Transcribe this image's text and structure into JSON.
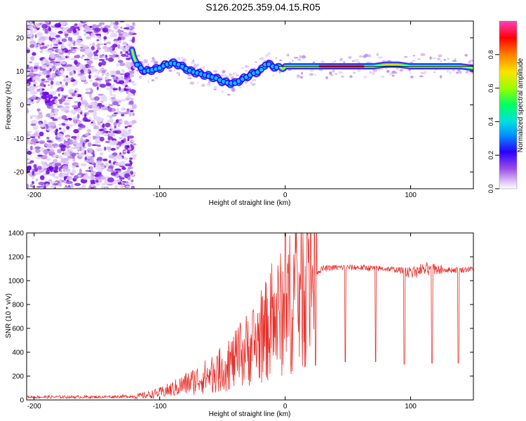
{
  "figure": {
    "title": "S126.2025.359.04.15.R05"
  },
  "chart_data": [
    {
      "type": "heatmap",
      "title": "",
      "xlabel": "Height of straight line (km)",
      "ylabel": "Frequency (Hz)",
      "xlim": [
        -206,
        150
      ],
      "ylim": [
        -25,
        25
      ],
      "xticks": [
        -200,
        -100,
        0,
        100
      ],
      "yticks": [
        -20,
        -10,
        0,
        10,
        20
      ],
      "colorbar": {
        "label": "Normalized spectral amplitude",
        "range": [
          0,
          1
        ],
        "ticks": [
          "0.0",
          "0.2",
          "0.4",
          "0.6",
          "0.8"
        ],
        "colormap": [
          "#ffffff",
          "#c8a0f0",
          "#8a2be2",
          "#0000ff",
          "#00c8ff",
          "#00ff80",
          "#7fff00",
          "#ffd700",
          "#ff8c00",
          "#ff0000",
          "#ff00ff"
        ]
      },
      "ridge": {
        "x": [
          -122,
          -118,
          -112,
          -105,
          -100,
          -95,
          -90,
          -85,
          -80,
          -75,
          -70,
          -65,
          -60,
          -55,
          -50,
          -45,
          -40,
          -35,
          -30,
          -25,
          -20,
          -15,
          -10,
          -5,
          0,
          10,
          20,
          30,
          40,
          50,
          60,
          70,
          80,
          90,
          100,
          110,
          120,
          130,
          140,
          150
        ],
        "y": [
          16.5,
          12,
          10,
          10.5,
          11,
          12,
          12.5,
          12,
          11,
          10,
          9.5,
          9,
          8.5,
          8,
          7,
          6.5,
          6.5,
          7.5,
          8.5,
          9.5,
          10,
          12.5,
          11.5,
          11,
          11.5,
          11.5,
          11.5,
          11.5,
          11.5,
          11.5,
          11.5,
          11.5,
          12,
          12,
          11.5,
          11.5,
          11.5,
          11.5,
          11.5,
          11
        ]
      }
    },
    {
      "type": "line",
      "title": "",
      "xlabel": "Height of straight line (km)",
      "ylabel": "SNR (10 * v/v)",
      "xlim": [
        -206,
        150
      ],
      "ylim": [
        0,
        1400
      ],
      "xticks": [
        -200,
        -100,
        0,
        100
      ],
      "yticks": [
        0,
        200,
        400,
        600,
        800,
        1000,
        1200,
        1400
      ],
      "color": "#e8302a",
      "envelope": {
        "x": [
          -206,
          -150,
          -120,
          -110,
          -100,
          -90,
          -80,
          -70,
          -60,
          -50,
          -40,
          -35,
          -30,
          -25,
          -20,
          -15,
          -10,
          -5,
          0,
          5,
          10,
          15,
          20,
          25,
          30,
          40,
          60,
          80,
          90,
          100,
          110,
          120,
          130,
          140,
          150
        ],
        "y": [
          25,
          25,
          30,
          40,
          60,
          90,
          130,
          170,
          210,
          260,
          330,
          380,
          430,
          470,
          520,
          580,
          640,
          700,
          760,
          830,
          900,
          960,
          1020,
          1070,
          1100,
          1110,
          1110,
          1100,
          1090,
          1080,
          1090,
          1100,
          1090,
          1090,
          1100
        ]
      },
      "spikes": [
        {
          "x": 24,
          "y": 290
        },
        {
          "x": 48,
          "y": 320
        },
        {
          "x": 72,
          "y": 320
        },
        {
          "x": 95,
          "y": 300
        },
        {
          "x": 117,
          "y": 310
        },
        {
          "x": 138,
          "y": 310
        }
      ]
    }
  ]
}
